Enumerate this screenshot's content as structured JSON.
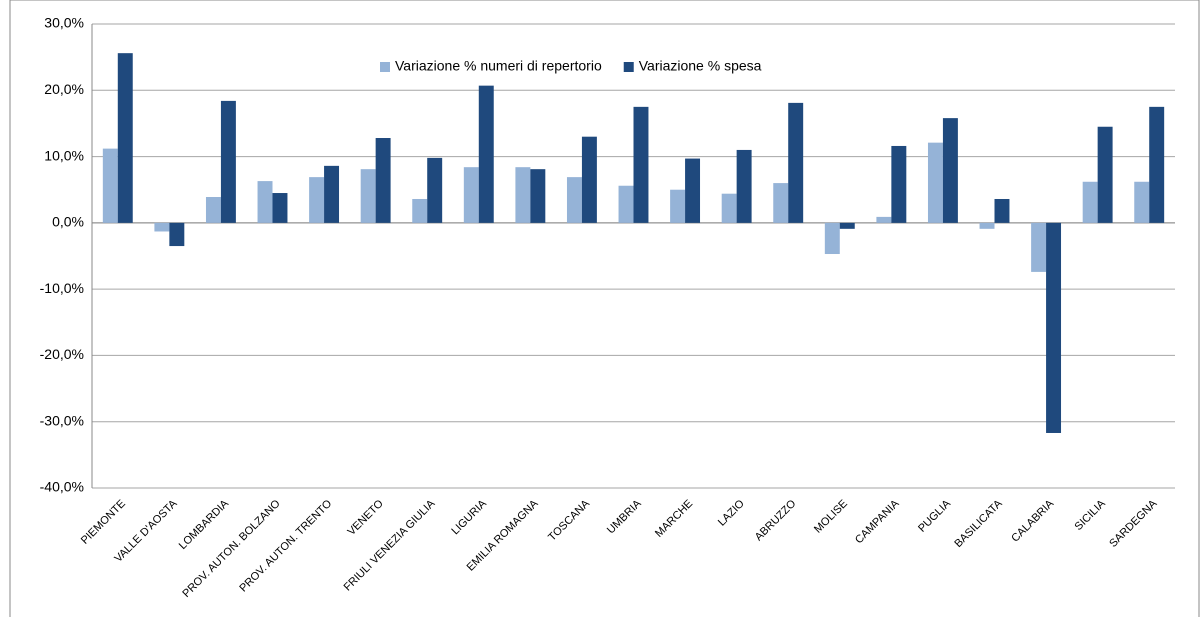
{
  "chart_data": {
    "type": "bar",
    "categories": [
      "PIEMONTE",
      "VALLE D'AOSTA",
      "LOMBARDIA",
      "PROV. AUTON. BOLZANO",
      "PROV. AUTON. TRENTO",
      "VENETO",
      "FRIULI VENEZIA GIULIA",
      "LIGURIA",
      "EMILIA ROMAGNA",
      "TOSCANA",
      "UMBRIA",
      "MARCHE",
      "LAZIO",
      "ABRUZZO",
      "MOLISE",
      "CAMPANIA",
      "PUGLIA",
      "BASILICATA",
      "CALABRIA",
      "SICILIA",
      "SARDEGNA"
    ],
    "series": [
      {
        "name": "Variazione % numeri di repertorio",
        "color": "#95b3d7",
        "values": [
          11.2,
          -1.3,
          3.9,
          6.3,
          6.9,
          8.1,
          3.6,
          8.4,
          8.4,
          6.9,
          5.6,
          5.0,
          4.4,
          6.0,
          -4.7,
          0.9,
          12.1,
          -0.9,
          -7.4,
          6.2,
          6.2
        ]
      },
      {
        "name": "Variazione % spesa",
        "color": "#1f497d",
        "values": [
          25.6,
          -3.5,
          18.4,
          4.5,
          8.6,
          12.8,
          9.8,
          20.7,
          8.1,
          13.0,
          17.5,
          9.7,
          11.0,
          18.1,
          -0.9,
          11.6,
          15.8,
          3.6,
          -31.7,
          14.5,
          17.5
        ]
      }
    ],
    "ylim": [
      -40,
      30
    ],
    "yticks": [
      {
        "value": -40,
        "label": "-40,0%"
      },
      {
        "value": -30,
        "label": "-30,0%"
      },
      {
        "value": -20,
        "label": "-20,0%"
      },
      {
        "value": -10,
        "label": "-10,0%"
      },
      {
        "value": 0,
        "label": "0,0%"
      },
      {
        "value": 10,
        "label": "10,0%"
      },
      {
        "value": 20,
        "label": "20,0%"
      },
      {
        "value": 30,
        "label": "30,0%"
      }
    ],
    "grid": true,
    "legend": "top"
  }
}
